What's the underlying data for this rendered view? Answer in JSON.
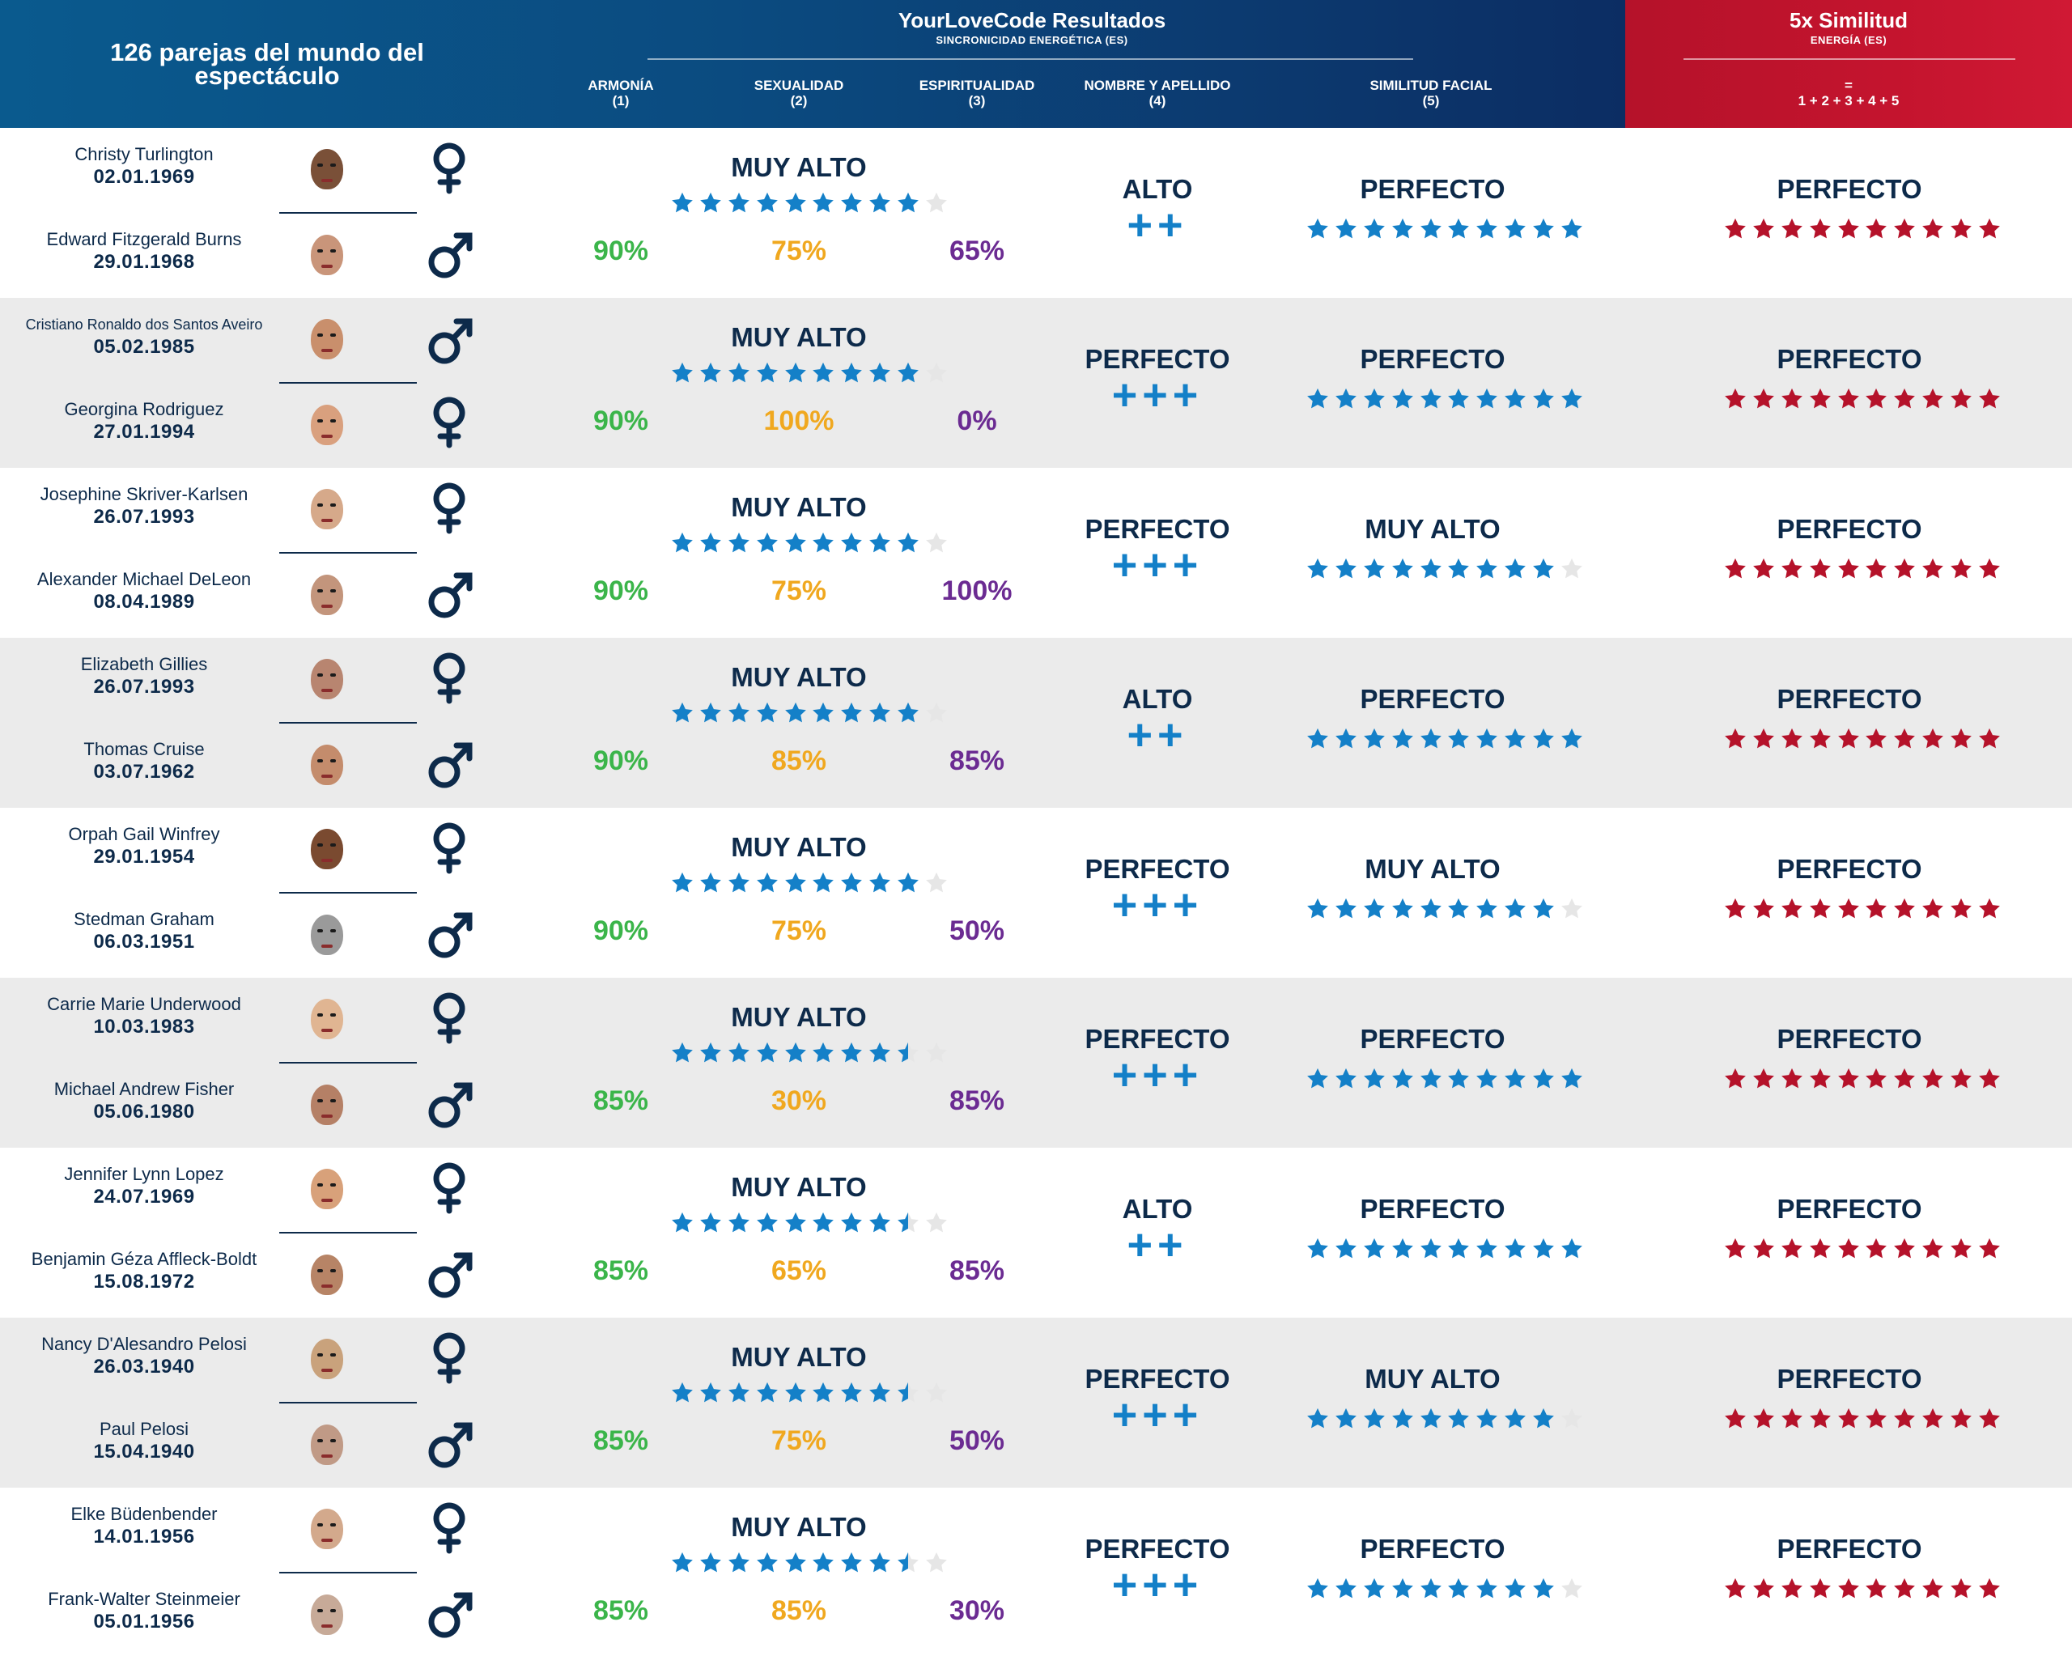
{
  "header": {
    "couples_title": "126 parejas del mundo del espectáculo",
    "results_title": "YourLoveCode Resultados",
    "results_subtitle": "SINCRONICIDAD ENERGÉTICA (ES)",
    "similarity_title": "5x Similitud",
    "similarity_subtitle": "ENERGÍA (ES)",
    "columns": [
      {
        "label": "ARMONÍA",
        "num": "(1)"
      },
      {
        "label": "SEXUALIDAD",
        "num": "(2)"
      },
      {
        "label": "ESPIRITUALIDAD",
        "num": "(3)"
      },
      {
        "label": "NOMBRE Y APELLIDO",
        "num": "(4)"
      },
      {
        "label": "SIMILITUD FACIAL",
        "num": "(5)"
      }
    ],
    "formula_eq": "=",
    "formula": "1 + 2 + 3 + 4 + 5"
  },
  "colors": {
    "header_blue": "#0b4b80",
    "header_red": "#c4142e",
    "star_blue": "#1480c8",
    "star_red": "#b5122a",
    "star_empty": "#e6e6e6",
    "armonia_green": "#3bb54a",
    "sexualidad_orange": "#f0a81f",
    "espiritualidad_purple": "#6b2b92",
    "row_gray": "#ebebeb"
  },
  "couples": [
    {
      "p1": {
        "name": "Christy Turlington",
        "date": "02.01.1969",
        "gender": "female",
        "icon": "venus-icon",
        "skin": "#7a5038"
      },
      "p2": {
        "name": "Edward Fitzgerald Burns",
        "date": "29.01.1968",
        "gender": "male",
        "icon": "mars-icon",
        "skin": "#c9957a"
      },
      "sync_label": "MUY ALTO",
      "sync_stars": 9,
      "armonia": "90%",
      "sexualidad": "75%",
      "espiritualidad": "65%",
      "name_label": "ALTO",
      "name_plus": "++",
      "face_label": "PERFECTO",
      "face_stars": 10,
      "total_label": "PERFECTO",
      "total_stars": 10
    },
    {
      "p1": {
        "name": "Cristiano Ronaldo dos Santos Aveiro",
        "date": "05.02.1985",
        "gender": "male",
        "icon": "mars-icon",
        "skin": "#c98f6c"
      },
      "p2": {
        "name": "Georgina Rodriguez",
        "date": "27.01.1994",
        "gender": "female",
        "icon": "venus-icon",
        "skin": "#d9a07e"
      },
      "sync_label": "MUY ALTO",
      "sync_stars": 9,
      "armonia": "90%",
      "sexualidad": "100%",
      "espiritualidad": "0%",
      "name_label": "PERFECTO",
      "name_plus": "+++",
      "face_label": "PERFECTO",
      "face_stars": 10,
      "total_label": "PERFECTO",
      "total_stars": 10
    },
    {
      "p1": {
        "name": "Josephine Skriver-Karlsen",
        "date": "26.07.1993",
        "gender": "female",
        "icon": "venus-icon",
        "skin": "#d6a98a"
      },
      "p2": {
        "name": "Alexander Michael DeLeon",
        "date": "08.04.1989",
        "gender": "male",
        "icon": "mars-icon",
        "skin": "#c3957c"
      },
      "sync_label": "MUY ALTO",
      "sync_stars": 9,
      "armonia": "90%",
      "sexualidad": "75%",
      "espiritualidad": "100%",
      "name_label": "PERFECTO",
      "name_plus": "+++",
      "face_label": "MUY ALTO",
      "face_stars": 9,
      "total_label": "PERFECTO",
      "total_stars": 10
    },
    {
      "p1": {
        "name": "Elizabeth Gillies",
        "date": "26.07.1993",
        "gender": "female",
        "icon": "venus-icon",
        "skin": "#b88570"
      },
      "p2": {
        "name": "Thomas Cruise",
        "date": "03.07.1962",
        "gender": "male",
        "icon": "mars-icon",
        "skin": "#c48c6c"
      },
      "sync_label": "MUY ALTO",
      "sync_stars": 9,
      "armonia": "90%",
      "sexualidad": "85%",
      "espiritualidad": "85%",
      "name_label": "ALTO",
      "name_plus": "++",
      "face_label": "PERFECTO",
      "face_stars": 10,
      "total_label": "PERFECTO",
      "total_stars": 10
    },
    {
      "p1": {
        "name": "Orpah Gail Winfrey",
        "date": "29.01.1954",
        "gender": "female",
        "icon": "venus-icon",
        "skin": "#7a4a30"
      },
      "p2": {
        "name": "Stedman Graham",
        "date": "06.03.1951",
        "gender": "male",
        "icon": "mars-icon",
        "skin": "#9a9a9a"
      },
      "sync_label": "MUY ALTO",
      "sync_stars": 9,
      "armonia": "90%",
      "sexualidad": "75%",
      "espiritualidad": "50%",
      "name_label": "PERFECTO",
      "name_plus": "+++",
      "face_label": "MUY ALTO",
      "face_stars": 9,
      "total_label": "PERFECTO",
      "total_stars": 10
    },
    {
      "p1": {
        "name": "Carrie Marie Underwood",
        "date": "10.03.1983",
        "gender": "female",
        "icon": "venus-icon",
        "skin": "#e0b592"
      },
      "p2": {
        "name": "Michael Andrew Fisher",
        "date": "05.06.1980",
        "gender": "male",
        "icon": "mars-icon",
        "skin": "#b58066"
      },
      "sync_label": "MUY ALTO",
      "sync_stars": 8.5,
      "armonia": "85%",
      "sexualidad": "30%",
      "espiritualidad": "85%",
      "name_label": "PERFECTO",
      "name_plus": "+++",
      "face_label": "PERFECTO",
      "face_stars": 10,
      "total_label": "PERFECTO",
      "total_stars": 10
    },
    {
      "p1": {
        "name": "Jennifer Lynn Lopez",
        "date": "24.07.1969",
        "gender": "female",
        "icon": "venus-icon",
        "skin": "#d8a17a"
      },
      "p2": {
        "name": "Benjamin Géza Affleck-Boldt",
        "date": "15.08.1972",
        "gender": "male",
        "icon": "mars-icon",
        "skin": "#b78466"
      },
      "sync_label": "MUY ALTO",
      "sync_stars": 8.5,
      "armonia": "85%",
      "sexualidad": "65%",
      "espiritualidad": "85%",
      "name_label": "ALTO",
      "name_plus": "++",
      "face_label": "PERFECTO",
      "face_stars": 10,
      "total_label": "PERFECTO",
      "total_stars": 10
    },
    {
      "p1": {
        "name": "Nancy D'Alesandro Pelosi",
        "date": "26.03.1940",
        "gender": "female",
        "icon": "venus-icon",
        "skin": "#c9a27c"
      },
      "p2": {
        "name": "Paul Pelosi",
        "date": "15.04.1940",
        "gender": "male",
        "icon": "mars-icon",
        "skin": "#c09a86"
      },
      "sync_label": "MUY ALTO",
      "sync_stars": 8.5,
      "armonia": "85%",
      "sexualidad": "75%",
      "espiritualidad": "50%",
      "name_label": "PERFECTO",
      "name_plus": "+++",
      "face_label": "MUY ALTO",
      "face_stars": 9,
      "total_label": "PERFECTO",
      "total_stars": 10
    },
    {
      "p1": {
        "name": "Elke Büdenbender",
        "date": "14.01.1956",
        "gender": "female",
        "icon": "venus-icon",
        "skin": "#d3a98c"
      },
      "p2": {
        "name": "Frank-Walter Steinmeier",
        "date": "05.01.1956",
        "gender": "male",
        "icon": "mars-icon",
        "skin": "#c7aa98"
      },
      "sync_label": "MUY ALTO",
      "sync_stars": 8.5,
      "armonia": "85%",
      "sexualidad": "85%",
      "espiritualidad": "30%",
      "name_label": "PERFECTO",
      "name_plus": "+++",
      "face_label": "PERFECTO",
      "face_stars": 9,
      "total_label": "PERFECTO",
      "total_stars": 10
    }
  ]
}
